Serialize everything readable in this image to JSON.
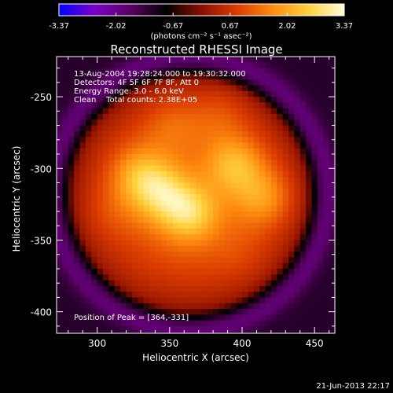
{
  "colorbar": {
    "ticks": [
      "-3.37",
      "-2.02",
      "-0.67",
      "0.67",
      "2.02",
      "3.37"
    ],
    "unit_label": "(photons cm⁻² s⁻¹ asec⁻²)",
    "range": [
      -3.37,
      3.37
    ],
    "colors": [
      "#0000ff",
      "#7d00c8",
      "#5a0064",
      "#000000",
      "#8c0f00",
      "#dc3c00",
      "#ff8c10",
      "#ffd23c",
      "#ffffdc"
    ]
  },
  "annotations": {
    "time_range": "13-Aug-2004 19:28:24.000 to 19:30:32.000",
    "detectors": "Detectors: 4F 5F 6F 7F 8F, Att 0",
    "energy_range": "Energy Range: 3.0 - 6.0 keV",
    "clean_counts": "Clean    Total counts: 2.38E+05",
    "peak_position": "Position of Peak = [364,-331]"
  },
  "footer": {
    "timestamp": "21-Jun-2013 22:17"
  },
  "chart_data": {
    "type": "heatmap",
    "title": "Reconstructed RHESSI Image",
    "xlabel": "Heliocentric X (arcsec)",
    "ylabel": "Heliocentric Y (arcsec)",
    "xlim": [
      272,
      464
    ],
    "ylim": [
      -415,
      -222
    ],
    "xticks": [
      300,
      350,
      400,
      450
    ],
    "yticks": [
      -250,
      -300,
      -350,
      -400
    ],
    "peak": [
      364,
      -331
    ],
    "sources": [
      {
        "x": 364,
        "y": -331,
        "value": 3.37
      },
      {
        "x": 345,
        "y": -318,
        "value": 2.9
      },
      {
        "x": 330,
        "y": -305,
        "value": 2.6
      },
      {
        "x": 395,
        "y": -298,
        "value": 2.8
      },
      {
        "x": 415,
        "y": -320,
        "value": 2.4
      },
      {
        "x": 352,
        "y": -270,
        "value": 1.4
      },
      {
        "x": 385,
        "y": -262,
        "value": 1.3
      },
      {
        "x": 310,
        "y": -330,
        "value": 1.1
      },
      {
        "x": 400,
        "y": -360,
        "value": 0.9
      },
      {
        "x": 345,
        "y": -380,
        "value": 0.6
      }
    ]
  }
}
